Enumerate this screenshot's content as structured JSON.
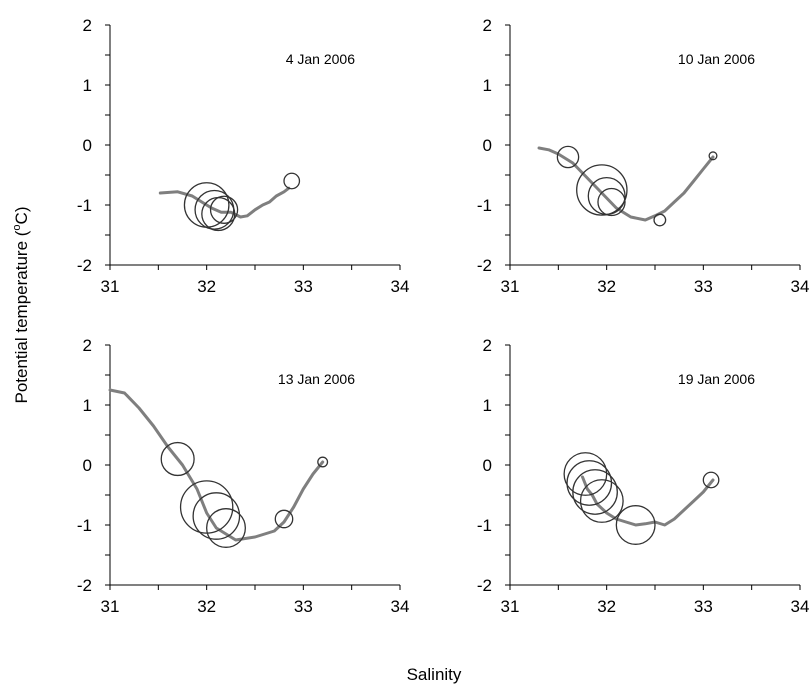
{
  "figure": {
    "ylabel_main": "Potential temperature (",
    "ylabel_sup": "o",
    "ylabel_end": "C)",
    "xlabel": "Salinity"
  },
  "chart_data": [
    {
      "type": "line",
      "title": "4 Jan 2006",
      "xlim": [
        31,
        34
      ],
      "ylim": [
        -2,
        2
      ],
      "xticks": [
        "31",
        "32",
        "33",
        "34"
      ],
      "yticks": [
        "-2",
        "-1",
        "0",
        "1",
        "2"
      ],
      "line_color": "#7f7f7f",
      "series": [
        {
          "x": [
            31.52,
            31.7,
            31.85,
            31.95,
            32.05,
            32.15,
            32.25,
            32.35,
            32.42,
            32.5,
            32.58,
            32.65,
            32.72,
            32.8,
            32.85
          ],
          "y": [
            -0.8,
            -0.78,
            -0.85,
            -0.95,
            -1.05,
            -1.12,
            -1.12,
            -1.2,
            -1.18,
            -1.08,
            -1.0,
            -0.95,
            -0.85,
            -0.78,
            -0.72
          ]
        }
      ],
      "circles": [
        {
          "x": 32.0,
          "y": -1.0,
          "r": 0.23
        },
        {
          "x": 32.08,
          "y": -1.08,
          "r": 0.2
        },
        {
          "x": 32.12,
          "y": -1.15,
          "r": 0.17
        },
        {
          "x": 32.18,
          "y": -1.08,
          "r": 0.14
        },
        {
          "x": 32.88,
          "y": -0.6,
          "r": 0.08
        }
      ]
    },
    {
      "type": "line",
      "title": "10 Jan 2006",
      "xlim": [
        31,
        34
      ],
      "ylim": [
        -2,
        2
      ],
      "xticks": [
        "31",
        "32",
        "33",
        "34"
      ],
      "yticks": [
        "-2",
        "-1",
        "0",
        "1",
        "2"
      ],
      "line_color": "#7f7f7f",
      "series": [
        {
          "x": [
            31.3,
            31.4,
            31.5,
            31.65,
            31.8,
            31.95,
            32.1,
            32.25,
            32.4,
            32.5,
            32.6,
            32.7,
            32.8,
            32.9,
            33.0,
            33.1
          ],
          "y": [
            -0.05,
            -0.08,
            -0.15,
            -0.3,
            -0.55,
            -0.8,
            -1.05,
            -1.2,
            -1.25,
            -1.18,
            -1.1,
            -0.95,
            -0.8,
            -0.6,
            -0.4,
            -0.2
          ]
        }
      ],
      "circles": [
        {
          "x": 31.6,
          "y": -0.2,
          "r": 0.11
        },
        {
          "x": 31.95,
          "y": -0.75,
          "r": 0.26
        },
        {
          "x": 32.0,
          "y": -0.85,
          "r": 0.19
        },
        {
          "x": 32.05,
          "y": -0.95,
          "r": 0.14
        },
        {
          "x": 32.55,
          "y": -1.25,
          "r": 0.06
        },
        {
          "x": 33.1,
          "y": -0.18,
          "r": 0.04
        }
      ]
    },
    {
      "type": "line",
      "title": "13 Jan 2006",
      "xlim": [
        31,
        34
      ],
      "ylim": [
        -2,
        2
      ],
      "xticks": [
        "31",
        "32",
        "33",
        "34"
      ],
      "yticks": [
        "-2",
        "-1",
        "0",
        "1",
        "2"
      ],
      "line_color": "#7f7f7f",
      "series": [
        {
          "x": [
            31.0,
            31.15,
            31.3,
            31.45,
            31.6,
            31.75,
            31.9,
            32.0,
            32.1,
            32.3,
            32.5,
            32.6,
            32.7,
            32.8,
            32.9,
            33.0,
            33.1,
            33.2
          ],
          "y": [
            1.25,
            1.2,
            0.95,
            0.65,
            0.3,
            0.0,
            -0.4,
            -0.8,
            -1.05,
            -1.25,
            -1.2,
            -1.15,
            -1.1,
            -0.95,
            -0.7,
            -0.4,
            -0.15,
            0.05
          ]
        }
      ],
      "circles": [
        {
          "x": 31.7,
          "y": 0.1,
          "r": 0.17
        },
        {
          "x": 32.0,
          "y": -0.7,
          "r": 0.27
        },
        {
          "x": 32.1,
          "y": -0.85,
          "r": 0.24
        },
        {
          "x": 32.2,
          "y": -1.05,
          "r": 0.2
        },
        {
          "x": 32.8,
          "y": -0.9,
          "r": 0.09
        },
        {
          "x": 33.2,
          "y": 0.05,
          "r": 0.05
        }
      ]
    },
    {
      "type": "line",
      "title": "19 Jan 2006",
      "xlim": [
        31,
        34
      ],
      "ylim": [
        -2,
        2
      ],
      "xticks": [
        "31",
        "32",
        "33",
        "34"
      ],
      "yticks": [
        "-2",
        "-1",
        "0",
        "1",
        "2"
      ],
      "line_color": "#7f7f7f",
      "series": [
        {
          "x": [
            31.75,
            31.8,
            31.85,
            31.9,
            32.0,
            32.1,
            32.2,
            32.3,
            32.4,
            32.5,
            32.6,
            32.7,
            32.8,
            32.9,
            33.0,
            33.1
          ],
          "y": [
            -0.2,
            -0.4,
            -0.5,
            -0.65,
            -0.8,
            -0.9,
            -0.95,
            -1.0,
            -0.98,
            -0.95,
            -1.0,
            -0.9,
            -0.75,
            -0.6,
            -0.45,
            -0.25
          ]
        }
      ],
      "circles": [
        {
          "x": 31.78,
          "y": -0.15,
          "r": 0.22
        },
        {
          "x": 31.82,
          "y": -0.3,
          "r": 0.23
        },
        {
          "x": 31.88,
          "y": -0.45,
          "r": 0.23
        },
        {
          "x": 31.95,
          "y": -0.6,
          "r": 0.22
        },
        {
          "x": 32.3,
          "y": -1.0,
          "r": 0.2
        },
        {
          "x": 33.08,
          "y": -0.25,
          "r": 0.08
        }
      ]
    }
  ]
}
